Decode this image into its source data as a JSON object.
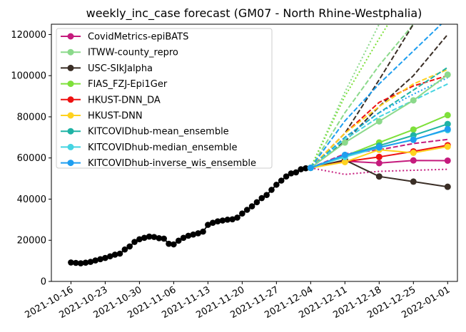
{
  "chart_data": {
    "type": "line",
    "title": "weekly_inc_case forecast (GM07 - North Rhine-Westphalia)",
    "xlabel": "",
    "ylabel": "",
    "x_range": [
      "2021-10-12",
      "2022-01-03"
    ],
    "ylim": [
      0,
      125000
    ],
    "x_ticks": [
      "2021-10-16",
      "2021-10-23",
      "2021-10-30",
      "2021-11-06",
      "2021-11-13",
      "2021-11-20",
      "2021-11-27",
      "2021-12-04",
      "2021-12-11",
      "2021-12-18",
      "2021-12-25",
      "2022-01-01"
    ],
    "y_ticks": [
      0,
      20000,
      40000,
      60000,
      80000,
      100000,
      120000
    ],
    "grid": false,
    "legend_position": "top-left",
    "observed": {
      "color": "#000000",
      "x": [
        "2021-10-16",
        "2021-10-17",
        "2021-10-18",
        "2021-10-19",
        "2021-10-20",
        "2021-10-21",
        "2021-10-22",
        "2021-10-23",
        "2021-10-24",
        "2021-10-25",
        "2021-10-26",
        "2021-10-27",
        "2021-10-28",
        "2021-10-29",
        "2021-10-30",
        "2021-10-31",
        "2021-11-01",
        "2021-11-02",
        "2021-11-03",
        "2021-11-04",
        "2021-11-05",
        "2021-11-06",
        "2021-11-07",
        "2021-11-08",
        "2021-11-09",
        "2021-11-10",
        "2021-11-11",
        "2021-11-12",
        "2021-11-13",
        "2021-11-14",
        "2021-11-15",
        "2021-11-16",
        "2021-11-17",
        "2021-11-18",
        "2021-11-19",
        "2021-11-20",
        "2021-11-21",
        "2021-11-22",
        "2021-11-23",
        "2021-11-24",
        "2021-11-25",
        "2021-11-26",
        "2021-11-27",
        "2021-11-28",
        "2021-11-29",
        "2021-11-30",
        "2021-12-01",
        "2021-12-02",
        "2021-12-03",
        "2021-12-04"
      ],
      "y": [
        9200,
        9000,
        8800,
        9100,
        9500,
        10200,
        10800,
        11400,
        12200,
        13000,
        13500,
        15500,
        17000,
        19200,
        20500,
        21200,
        21800,
        21600,
        21000,
        20800,
        18300,
        18000,
        19800,
        21200,
        22200,
        22800,
        23400,
        24200,
        27500,
        28500,
        29200,
        29600,
        30000,
        30200,
        31000,
        33000,
        34800,
        36500,
        38500,
        40500,
        42000,
        44500,
        47000,
        49000,
        51000,
        52500,
        53000,
        54500,
        55000,
        55200
      ]
    },
    "series": [
      {
        "name": "CovidMetrics-epiBATS",
        "color": "#c51b7d",
        "x": [
          "2021-12-04",
          "2021-12-11",
          "2021-12-18",
          "2021-12-25",
          "2022-01-01"
        ],
        "y": [
          55200,
          58500,
          57500,
          58800,
          58700
        ],
        "bands": [
          {
            "style": "dotted",
            "y": [
              55200,
              52000,
              53500,
              54000,
              54500
            ]
          },
          {
            "style": "dashed",
            "y": [
              55200,
              62000,
              64000,
              67000,
              69000
            ]
          }
        ]
      },
      {
        "name": "ITWW-county_repro",
        "color": "#8bd98b",
        "x": [
          "2021-12-04",
          "2021-12-11",
          "2021-12-18",
          "2021-12-25",
          "2022-01-01"
        ],
        "y": [
          55200,
          67500,
          77800,
          88000,
          100500
        ],
        "bands": [
          {
            "style": "dashed",
            "y": [
              55200,
              82000,
              105000,
              125000,
              150000
            ]
          },
          {
            "style": "dotted",
            "y": [
              55200,
              92000,
              125000,
              160000,
              200000
            ]
          }
        ]
      },
      {
        "name": "USC-SIkJalpha",
        "color": "#3a2e26",
        "x": [
          "2021-12-04",
          "2021-12-11",
          "2021-12-18",
          "2021-12-25",
          "2022-01-01"
        ],
        "y": [
          55200,
          59000,
          51000,
          48500,
          46000
        ],
        "bands": [
          {
            "style": "dashed",
            "y": [
              55200,
              68000,
              85000,
              100000,
              120000
            ]
          },
          {
            "style": "dashed",
            "y": [
              55200,
              72000,
              98000,
              125000,
              155000
            ]
          }
        ]
      },
      {
        "name": "FIAS_FZJ-Epi1Ger",
        "color": "#7ee03a",
        "x": [
          "2021-12-04",
          "2021-12-11",
          "2021-12-18",
          "2021-12-25",
          "2022-01-01"
        ],
        "y": [
          55200,
          61000,
          67500,
          73800,
          80800
        ],
        "bands": [
          {
            "style": "dotted",
            "y": [
              55200,
              90000,
              118000,
              145000,
              170000
            ]
          }
        ]
      },
      {
        "name": "HKUST-DNN_DA",
        "color": "#ee1111",
        "x": [
          "2021-12-04",
          "2021-12-11",
          "2021-12-18",
          "2021-12-25",
          "2022-01-01"
        ],
        "y": [
          55200,
          58200,
          60500,
          63200,
          66200
        ],
        "bands": [
          {
            "style": "dashed",
            "y": [
              55200,
              72000,
              87000,
              95000,
              100000
            ]
          }
        ]
      },
      {
        "name": "HKUST-DNN",
        "color": "#ffd21f",
        "x": [
          "2021-12-04",
          "2021-12-11",
          "2021-12-18",
          "2021-12-25",
          "2022-01-01"
        ],
        "y": [
          55200,
          58000,
          64000,
          62500,
          65500
        ],
        "bands": [
          {
            "style": "dashed",
            "y": [
              55200,
              72000,
              85000,
              96000,
              103000
            ]
          }
        ]
      },
      {
        "name": "KITCOVIDhub-mean_ensemble",
        "color": "#1fb3a5",
        "x": [
          "2021-12-04",
          "2021-12-11",
          "2021-12-18",
          "2021-12-25",
          "2022-01-01"
        ],
        "y": [
          55200,
          61000,
          66000,
          71000,
          76500
        ],
        "bands": [
          {
            "style": "dashed",
            "y": [
              55200,
              70000,
              82000,
              93000,
              104000
            ]
          }
        ]
      },
      {
        "name": "KITCOVIDhub-median_ensemble",
        "color": "#45d4e2",
        "x": [
          "2021-12-04",
          "2021-12-11",
          "2021-12-18",
          "2021-12-25",
          "2022-01-01"
        ],
        "y": [
          55200,
          60500,
          65000,
          69000,
          73500
        ],
        "bands": [
          {
            "style": "dashed",
            "y": [
              55200,
              69000,
              80000,
              88000,
              96000
            ]
          }
        ]
      },
      {
        "name": "KITCOVIDhub-inverse_wis_ensemble",
        "color": "#1e9ef0",
        "x": [
          "2021-12-04",
          "2021-12-11",
          "2021-12-18",
          "2021-12-25",
          "2022-01-01"
        ],
        "y": [
          55200,
          61500,
          65200,
          68800,
          74000
        ],
        "bands": [
          {
            "style": "dotted",
            "y": [
              55200,
              70000,
              82000,
              91000,
              99000
            ]
          },
          {
            "style": "dashed",
            "y": [
              55200,
              78000,
              96000,
              112000,
              128000
            ]
          }
        ]
      }
    ]
  }
}
